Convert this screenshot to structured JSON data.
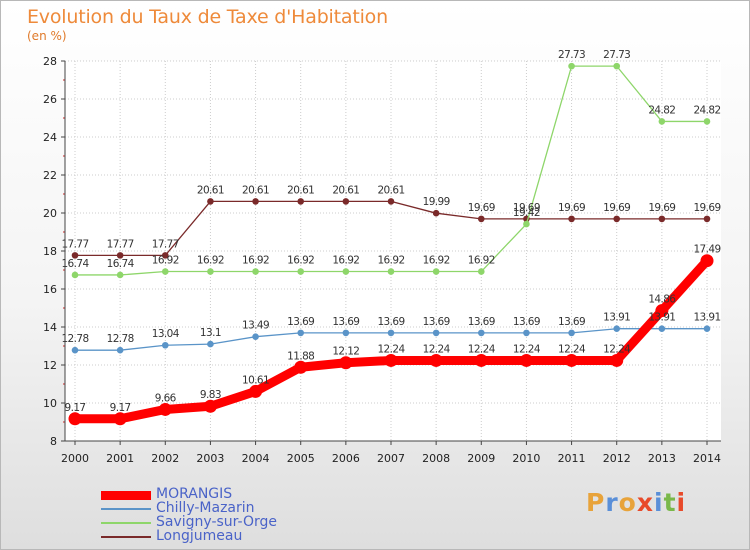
{
  "title": "Evolution du Taux de Taxe d'Habitation",
  "unit": "(en %)",
  "logo": {
    "text": "Proxiti",
    "colors": [
      "#e8a33a",
      "#5a8fd8",
      "#e8a33a",
      "#e84a2a",
      "#5a8fd8",
      "#7ab84a",
      "#e84a2a"
    ]
  },
  "chart_data": {
    "type": "line",
    "x": [
      "2000",
      "2001",
      "2002",
      "2003",
      "2004",
      "2005",
      "2006",
      "2007",
      "2008",
      "2009",
      "2010",
      "2011",
      "2012",
      "2013",
      "2014"
    ],
    "ylim": [
      8,
      28
    ],
    "yticks": [
      "8",
      "10",
      "12",
      "14",
      "16",
      "18",
      "20",
      "22",
      "24",
      "26",
      "28"
    ],
    "grid": true,
    "legend_position": "bottom-left",
    "series": [
      {
        "name": "MORANGIS",
        "color": "#ff0000",
        "values": [
          9.17,
          9.17,
          9.66,
          9.83,
          10.61,
          11.88,
          12.12,
          12.24,
          12.24,
          12.24,
          12.24,
          12.24,
          12.24,
          14.86,
          17.49
        ],
        "labels": [
          "9.17",
          "9.17",
          "9.66",
          "9.83",
          "10.61",
          "11.88",
          "12.12",
          "12.24",
          "12.24",
          "12.24",
          "12.24",
          "12.24",
          "12.24",
          "14.86",
          "17.49"
        ]
      },
      {
        "name": "Chilly-Mazarin",
        "color": "#5a94c8",
        "values": [
          12.78,
          12.78,
          13.04,
          13.1,
          13.49,
          13.69,
          13.69,
          13.69,
          13.69,
          13.69,
          13.69,
          13.69,
          13.91,
          13.91,
          13.91
        ],
        "labels": [
          "12.78",
          "12.78",
          "13.04",
          "13.1",
          "13.49",
          "13.69",
          "13.69",
          "13.69",
          "13.69",
          "13.69",
          "13.69",
          "13.69",
          "13.91",
          "13.91",
          "13.91"
        ]
      },
      {
        "name": "Savigny-sur-Orge",
        "color": "#8ed66a",
        "values": [
          16.74,
          16.74,
          16.92,
          16.92,
          16.92,
          16.92,
          16.92,
          16.92,
          16.92,
          16.92,
          19.42,
          27.73,
          27.73,
          24.82,
          24.82
        ],
        "labels": [
          "16.74",
          "16.74",
          "16.92",
          "16.92",
          "16.92",
          "16.92",
          "16.92",
          "16.92",
          "16.92",
          "16.92",
          "19.42",
          "27.73",
          "27.73",
          "24.82",
          "24.82"
        ]
      },
      {
        "name": "Longjumeau",
        "color": "#7a2a2a",
        "values": [
          17.77,
          17.77,
          17.77,
          20.61,
          20.61,
          20.61,
          20.61,
          20.61,
          19.99,
          19.69,
          19.69,
          19.69,
          19.69,
          19.69,
          19.69
        ],
        "labels": [
          "17.77",
          "17.77",
          "17.77",
          "20.61",
          "20.61",
          "20.61",
          "20.61",
          "20.61",
          "19.99",
          "19.69",
          "19.69",
          "19.69",
          "19.69",
          "19.69",
          "19.69"
        ]
      }
    ]
  }
}
